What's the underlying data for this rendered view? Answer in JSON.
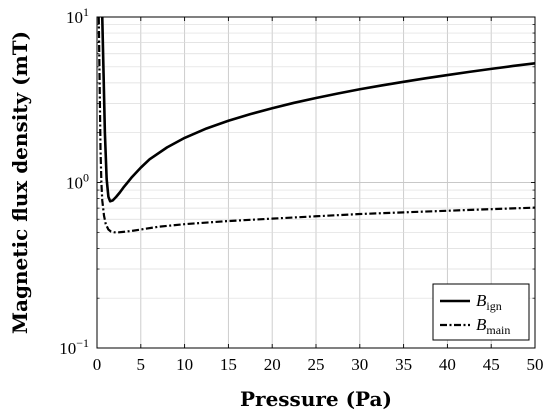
{
  "chart_data": {
    "type": "line",
    "xlabel": "Pressure (Pa)",
    "ylabel": "Magnetic flux density (mT)",
    "x_scale": "linear",
    "y_scale": "log",
    "xlim": [
      0,
      50
    ],
    "ylim": [
      0.1,
      10
    ],
    "x_ticks": [
      0,
      5,
      10,
      15,
      20,
      25,
      30,
      35,
      40,
      45,
      50
    ],
    "x_tick_labels": [
      "0",
      "5",
      "10",
      "15",
      "20",
      "25",
      "30",
      "35",
      "40",
      "45",
      "50"
    ],
    "y_ticks": [
      0.1,
      1,
      10
    ],
    "y_tick_labels": [
      {
        "base": "10",
        "exp": "−1"
      },
      {
        "base": "10",
        "exp": "0"
      },
      {
        "base": "10",
        "exp": "1"
      }
    ],
    "grid": true,
    "legend_position": "bottom-right",
    "series": [
      {
        "name": "B",
        "name_sub": "ign",
        "style": "solid",
        "color": "#000000",
        "x": [
          0.6,
          0.75,
          0.9,
          1.1,
          1.3,
          1.5,
          1.8,
          2.2,
          2.6,
          3,
          4,
          5,
          6,
          8,
          10,
          12.5,
          15,
          17.5,
          20,
          22.5,
          25,
          27.5,
          30,
          32.5,
          35,
          37.5,
          40,
          42.5,
          45,
          47.5,
          50
        ],
        "y": [
          10,
          4.5,
          2.0,
          1.05,
          0.82,
          0.77,
          0.78,
          0.82,
          0.87,
          0.93,
          1.08,
          1.23,
          1.38,
          1.63,
          1.86,
          2.12,
          2.36,
          2.59,
          2.81,
          3.03,
          3.24,
          3.45,
          3.66,
          3.86,
          4.06,
          4.26,
          4.46,
          4.66,
          4.86,
          5.06,
          5.25
        ]
      },
      {
        "name": "B",
        "name_sub": "main",
        "style": "dash-dot",
        "color": "#000000",
        "x": [
          0.2,
          0.3,
          0.4,
          0.5,
          0.6,
          0.8,
          1.0,
          1.3,
          1.6,
          2,
          2.5,
          3,
          4,
          5,
          7,
          10,
          15,
          20,
          25,
          30,
          35,
          40,
          45,
          50
        ],
        "y": [
          10,
          4.0,
          1.6,
          1.0,
          0.78,
          0.63,
          0.56,
          0.52,
          0.505,
          0.5,
          0.5,
          0.503,
          0.51,
          0.52,
          0.54,
          0.56,
          0.585,
          0.605,
          0.625,
          0.645,
          0.66,
          0.675,
          0.69,
          0.705
        ]
      }
    ]
  }
}
